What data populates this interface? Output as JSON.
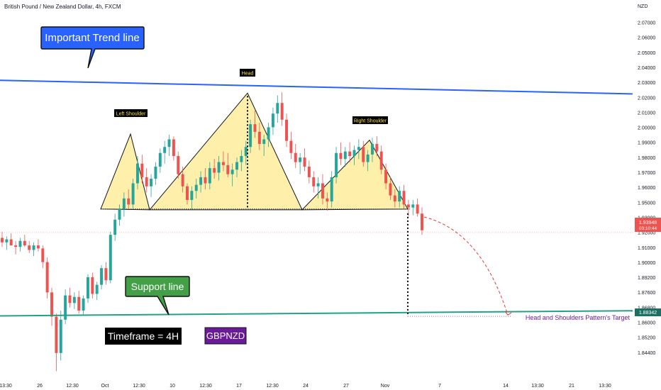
{
  "header": {
    "title": "British Pound / New Zealand Dollar, 4h, FXCM"
  },
  "currency_unit": "NZD",
  "colors": {
    "up": "#26a69a",
    "down": "#ef5350",
    "trend_line": "#2962ff",
    "support_line": "#22a08a",
    "pattern_fill": "#fde98a",
    "pattern_stroke": "#131722",
    "target_arc": "#e53935",
    "price_badge": "#ef5350",
    "support_badge": "#1e6f63",
    "target_label": "#6a1b9a",
    "callout_blue": "#2962ff",
    "callout_green": "#43a047",
    "symbol_badge": "#6a1b9a"
  },
  "callouts": {
    "trend": "Important Trend line",
    "support": "Support line",
    "timeframe": "Timeframe = 4H",
    "symbol": "GBPNZD"
  },
  "pattern_labels": {
    "left": "Left Shoulder",
    "head": "Head",
    "right": "Right Shoulder"
  },
  "target_label": "Head and Shoulders Pattern's Target",
  "price_badge": {
    "price": "1.93948",
    "countdown": "03:10:44"
  },
  "support_badge": "1.88342",
  "chart_data": {
    "type": "candlestick",
    "title": "British Pound / New Zealand Dollar, 4h, FXCM",
    "x_tick_labels": [
      "13:30",
      "26",
      "12:30",
      "Oct",
      "12:30",
      "10",
      "12:30",
      "17",
      "12:30",
      "24",
      "27",
      "Nov",
      "7",
      "14",
      "13:30",
      "21",
      "13:30"
    ],
    "y_tick_labels": [
      "2.07000",
      "2.06000",
      "2.05000",
      "2.04000",
      "2.03000",
      "2.02000",
      "2.01000",
      "2.00000",
      "1.99000",
      "1.98000",
      "1.97000",
      "1.96000",
      "1.95000",
      "1.93000",
      "1.92000",
      "1.91000",
      "1.90000",
      "1.89200",
      "1.87600",
      "1.86800",
      "1.86000",
      "1.85200",
      "1.84400"
    ],
    "ylim": [
      1.844,
      2.078
    ],
    "current_price": 1.93948,
    "support_level": 1.88342,
    "neckline": 1.955,
    "trend_line": {
      "from": 2.04,
      "to": 2.031
    },
    "support_line": {
      "from": 1.8845,
      "to": 1.8879
    },
    "pattern_points": {
      "left_shoulder": 2.0045,
      "head": 2.0315,
      "right_shoulder": 2.0005,
      "neck_1": 1.9545,
      "neck_2": 1.9545
    },
    "target": 1.8842,
    "candles": [
      [
        1.936,
        1.94,
        1.93,
        1.933
      ],
      [
        1.933,
        1.937,
        1.928,
        1.935
      ],
      [
        1.935,
        1.939,
        1.931,
        1.931
      ],
      [
        1.931,
        1.934,
        1.925,
        1.93
      ],
      [
        1.93,
        1.936,
        1.927,
        1.934
      ],
      [
        1.934,
        1.938,
        1.93,
        1.931
      ],
      [
        1.931,
        1.934,
        1.926,
        1.928
      ],
      [
        1.928,
        1.933,
        1.924,
        1.931
      ],
      [
        1.931,
        1.935,
        1.927,
        1.929
      ],
      [
        1.929,
        1.931,
        1.916,
        1.92
      ],
      [
        1.92,
        1.923,
        1.896,
        1.9
      ],
      [
        1.9,
        1.903,
        1.878,
        1.884
      ],
      [
        1.884,
        1.886,
        1.848,
        1.86
      ],
      [
        1.86,
        1.888,
        1.855,
        1.882
      ],
      [
        1.882,
        1.902,
        1.879,
        1.898
      ],
      [
        1.898,
        1.903,
        1.89,
        1.893
      ],
      [
        1.893,
        1.9,
        1.889,
        1.897
      ],
      [
        1.897,
        1.901,
        1.886,
        1.888
      ],
      [
        1.888,
        1.898,
        1.885,
        1.896
      ],
      [
        1.896,
        1.912,
        1.893,
        1.91
      ],
      [
        1.91,
        1.913,
        1.896,
        1.899
      ],
      [
        1.899,
        1.907,
        1.895,
        1.905
      ],
      [
        1.905,
        1.918,
        1.902,
        1.916
      ],
      [
        1.916,
        1.92,
        1.905,
        1.908
      ],
      [
        1.908,
        1.94,
        1.906,
        1.938
      ],
      [
        1.938,
        1.952,
        1.934,
        1.948
      ],
      [
        1.948,
        1.958,
        1.944,
        1.955
      ],
      [
        1.955,
        1.966,
        1.95,
        1.962
      ],
      [
        1.962,
        1.968,
        1.955,
        1.958
      ],
      [
        1.958,
        1.975,
        1.955,
        1.972
      ],
      [
        1.972,
        1.99,
        1.968,
        1.985
      ],
      [
        1.985,
        1.991,
        1.972,
        1.976
      ],
      [
        1.976,
        1.982,
        1.966,
        1.97
      ],
      [
        1.97,
        1.978,
        1.963,
        1.975
      ],
      [
        1.975,
        1.986,
        1.971,
        1.983
      ],
      [
        1.983,
        1.995,
        1.979,
        1.992
      ],
      [
        1.992,
        2.0,
        1.985,
        1.996
      ],
      [
        1.996,
        2.004,
        1.99,
        2.001
      ],
      [
        2.001,
        2.003,
        1.987,
        1.99
      ],
      [
        1.99,
        1.993,
        1.975,
        1.978
      ],
      [
        1.978,
        1.983,
        1.966,
        1.97
      ],
      [
        1.97,
        1.972,
        1.958,
        1.961
      ],
      [
        1.961,
        1.97,
        1.955,
        1.967
      ],
      [
        1.967,
        1.975,
        1.962,
        1.971
      ],
      [
        1.971,
        1.98,
        1.966,
        1.976
      ],
      [
        1.976,
        1.982,
        1.968,
        1.972
      ],
      [
        1.972,
        1.986,
        1.968,
        1.982
      ],
      [
        1.982,
        1.988,
        1.975,
        1.979
      ],
      [
        1.979,
        1.99,
        1.974,
        1.986
      ],
      [
        1.986,
        1.993,
        1.98,
        1.984
      ],
      [
        1.984,
        1.992,
        1.976,
        1.978
      ],
      [
        1.978,
        1.985,
        1.97,
        1.981
      ],
      [
        1.981,
        1.989,
        1.976,
        1.986
      ],
      [
        1.986,
        1.994,
        1.98,
        1.99
      ],
      [
        1.99,
        2.0,
        1.984,
        1.996
      ],
      [
        1.996,
        2.014,
        1.992,
        2.011
      ],
      [
        2.011,
        2.02,
        2.002,
        2.006
      ],
      [
        2.006,
        2.012,
        1.994,
        1.998
      ],
      [
        1.998,
        2.004,
        1.99,
        2.001
      ],
      [
        2.001,
        2.012,
        1.996,
        2.009
      ],
      [
        2.009,
        2.022,
        2.004,
        2.018
      ],
      [
        2.018,
        2.03,
        2.012,
        2.025
      ],
      [
        2.025,
        2.032,
        2.01,
        2.014
      ],
      [
        2.014,
        2.018,
        1.996,
        2.0
      ],
      [
        2.0,
        2.006,
        1.988,
        1.992
      ],
      [
        1.992,
        1.998,
        1.982,
        1.986
      ],
      [
        1.986,
        1.992,
        1.978,
        1.989
      ],
      [
        1.989,
        1.995,
        1.98,
        1.983
      ],
      [
        1.983,
        1.987,
        1.972,
        1.976
      ],
      [
        1.976,
        1.98,
        1.966,
        1.97
      ],
      [
        1.97,
        1.976,
        1.962,
        1.972
      ],
      [
        1.972,
        1.978,
        1.958,
        1.962
      ],
      [
        1.962,
        1.966,
        1.954,
        1.96
      ],
      [
        1.96,
        1.98,
        1.956,
        1.976
      ],
      [
        1.976,
        1.996,
        1.972,
        1.992
      ],
      [
        1.992,
        1.999,
        1.984,
        1.988
      ],
      [
        1.988,
        1.996,
        1.983,
        1.993
      ],
      [
        1.993,
        1.999,
        1.986,
        1.99
      ],
      [
        1.99,
        1.997,
        1.984,
        1.994
      ],
      [
        1.994,
        2.001,
        1.988,
        1.996
      ],
      [
        1.996,
        2.0,
        1.983,
        1.986
      ],
      [
        1.986,
        1.994,
        1.98,
        1.991
      ],
      [
        1.991,
        2.002,
        1.986,
        1.998
      ],
      [
        1.998,
        2.003,
        1.99,
        1.993
      ],
      [
        1.993,
        1.997,
        1.978,
        1.981
      ],
      [
        1.981,
        1.985,
        1.968,
        1.972
      ],
      [
        1.972,
        1.976,
        1.961,
        1.964
      ],
      [
        1.964,
        1.968,
        1.956,
        1.96
      ],
      [
        1.96,
        1.97,
        1.956,
        1.967
      ],
      [
        1.967,
        1.971,
        1.955,
        1.958
      ],
      [
        1.958,
        1.961,
        1.95,
        1.956
      ],
      [
        1.956,
        1.961,
        1.951,
        1.958
      ],
      [
        1.958,
        1.962,
        1.95,
        1.952
      ],
      [
        1.952,
        1.956,
        1.938,
        1.941
      ]
    ]
  }
}
